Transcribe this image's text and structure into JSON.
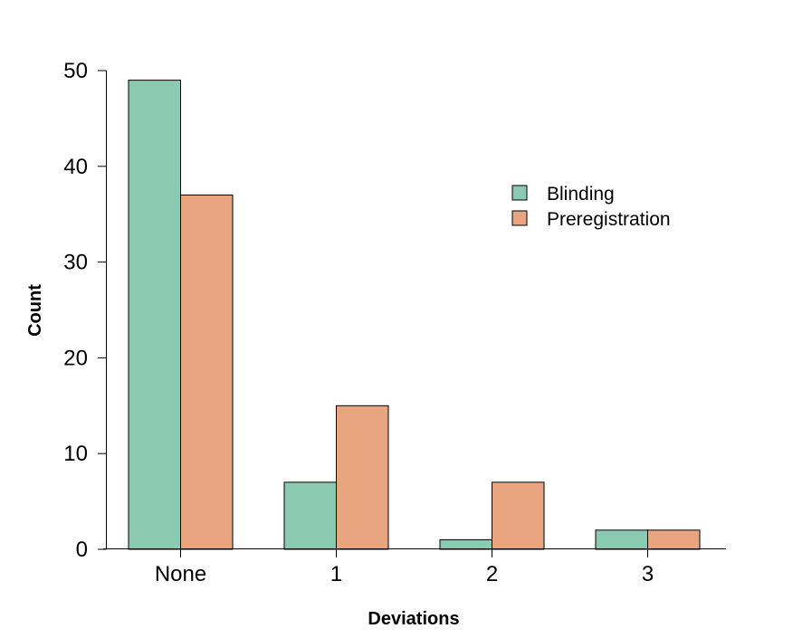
{
  "chart_data": {
    "type": "bar",
    "title": "",
    "xlabel": "Deviations",
    "ylabel": "Count",
    "categories": [
      "None",
      "1",
      "2",
      "3"
    ],
    "series": [
      {
        "name": "Blinding",
        "values": [
          49,
          7,
          1,
          2
        ],
        "color": "#8CC9B3"
      },
      {
        "name": "Preregistration",
        "values": [
          37,
          15,
          7,
          2
        ],
        "color": "#E8A580"
      }
    ],
    "ylim": [
      0,
      50
    ],
    "yticks": [
      "0",
      "10",
      "20",
      "30",
      "40",
      "50"
    ],
    "grid": false,
    "legend_position": "top-right"
  }
}
